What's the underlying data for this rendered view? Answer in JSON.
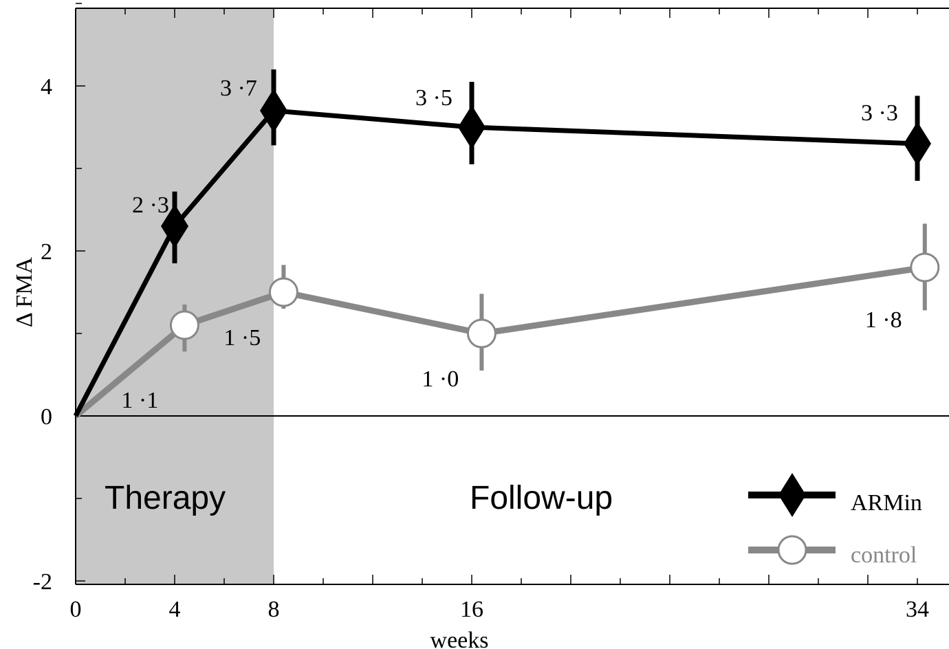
{
  "chart_data": {
    "type": "line",
    "x": [
      0,
      4,
      8,
      16,
      34
    ],
    "xlabel": "weeks",
    "ylabel": "Δ FMA",
    "xlim": [
      0,
      35.5
    ],
    "ylim": [
      -2,
      5
    ],
    "xticks": [
      0,
      4,
      8,
      16,
      34
    ],
    "yticks": [
      -2,
      0,
      2,
      4
    ],
    "grid": false,
    "legend": "bottom-right",
    "series": [
      {
        "name": "ARMin",
        "color": "#000000",
        "marker": "filled-diamond",
        "x": [
          0,
          4,
          8,
          16,
          34
        ],
        "y": [
          0,
          2.3,
          3.7,
          3.5,
          3.3
        ],
        "err_low": [
          null,
          1.85,
          3.28,
          3.05,
          2.85
        ],
        "err_high": [
          null,
          2.72,
          4.2,
          4.05,
          3.88
        ],
        "labels": [
          "",
          "2 ·3",
          "3 ·7",
          "3 ·5",
          "3 ·3"
        ]
      },
      {
        "name": "control",
        "color": "#888888",
        "marker": "open-circle",
        "x": [
          0,
          4.4,
          8.4,
          16.4,
          34.3
        ],
        "y": [
          0,
          1.1,
          1.5,
          1.0,
          1.8
        ],
        "err_low": [
          null,
          0.78,
          1.3,
          0.55,
          1.28
        ],
        "err_high": [
          null,
          1.35,
          1.83,
          1.48,
          2.33
        ],
        "labels": [
          "",
          "1 ·1",
          "1 ·5",
          "1 ·0",
          "1 ·8"
        ]
      }
    ],
    "annotations": [
      {
        "text": "Therapy",
        "span": [
          0,
          8
        ]
      },
      {
        "text": "Follow-up"
      }
    ]
  }
}
